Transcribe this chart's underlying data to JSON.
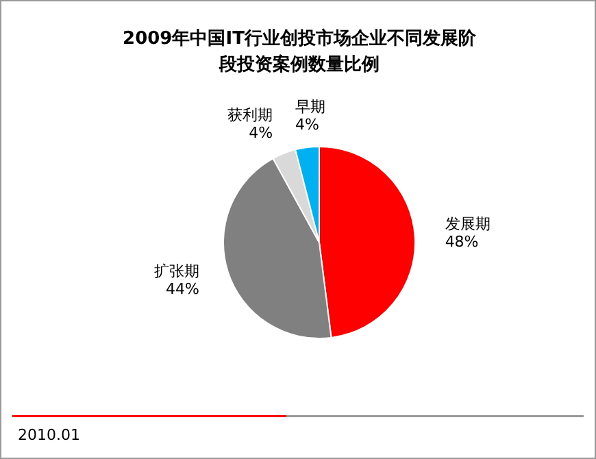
{
  "chart_data": {
    "type": "pie",
    "title": "2009年中国IT行业创投市场企业不同发展阶段投资案例数量比例",
    "categories": [
      "发展期",
      "扩张期",
      "获利期",
      "早期"
    ],
    "values": [
      48,
      44,
      4,
      4
    ],
    "colors": [
      "#ff0000",
      "#808080",
      "#d9d9d9",
      "#00b0f0"
    ],
    "value_labels": [
      "48%",
      "44%",
      "4%",
      "4%"
    ],
    "annotations": [
      "2010.01"
    ]
  }
}
